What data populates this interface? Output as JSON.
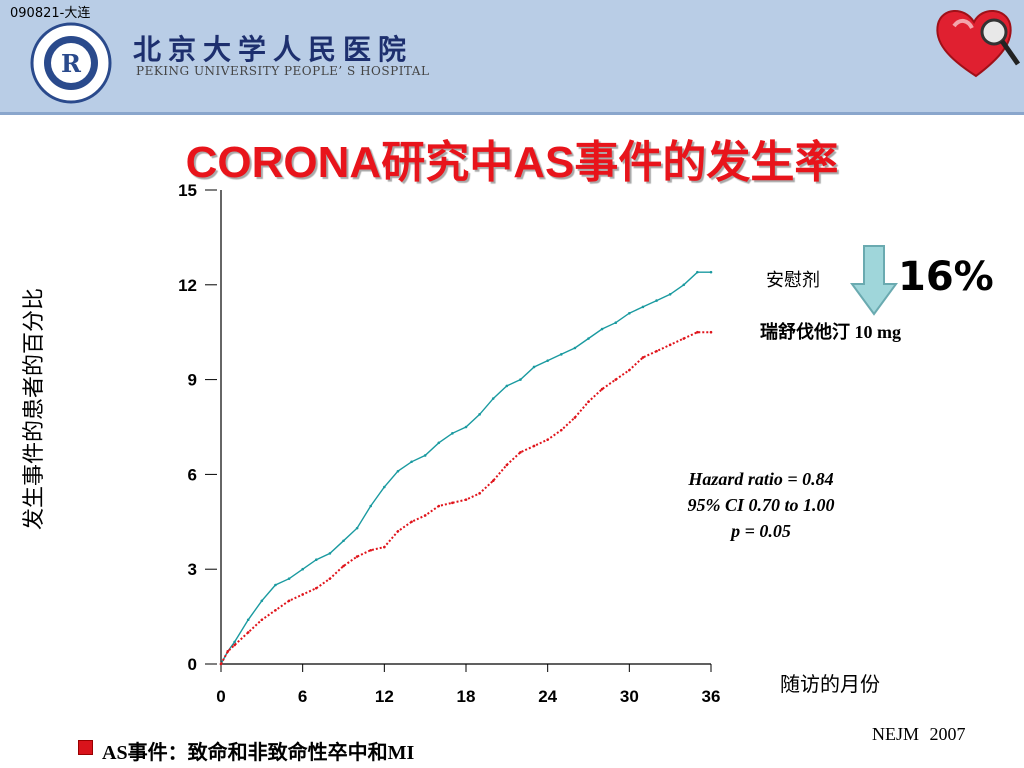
{
  "header": {
    "corner_tag": "090821-大连",
    "hospital_cn": "北京大学人民医院",
    "hospital_en": "PEKING UNIVERSITY PEOPLE’ S HOSPITAL"
  },
  "title": "CORONA研究中AS事件的发生率",
  "annotations": {
    "placebo": "安慰剂",
    "drug": "瑞舒伐他汀 10 mg",
    "reduction": "16%",
    "stats": [
      "Hazard ratio = 0.84",
      "95% CI 0.70 to 1.00",
      "p = 0.05"
    ]
  },
  "source": "NEJM  2007",
  "footnote": "AS事件：致命和非致命性卒中和MI",
  "colors": {
    "title": "#e8141b",
    "placebo_line": "#1a9aa0",
    "drug_line": "#e0141b",
    "arrow": "#9fd6da",
    "header_bg": "#b9cde6"
  },
  "chart_data": {
    "type": "line",
    "title": "",
    "xlabel": "随访的月份",
    "ylabel": "发生事件的患者的百分比",
    "xlim": [
      0,
      36
    ],
    "ylim": [
      0,
      15
    ],
    "x_ticks": [
      0,
      6,
      12,
      18,
      24,
      30,
      36
    ],
    "y_ticks": [
      0,
      3,
      6,
      9,
      12,
      15
    ],
    "grid": false,
    "series": [
      {
        "name": "安慰剂",
        "color": "#1a9aa0",
        "x": [
          0,
          0.5,
          1,
          2,
          3,
          4,
          5,
          6,
          7,
          8,
          9,
          10,
          11,
          12,
          13,
          14,
          15,
          16,
          17,
          18,
          19,
          20,
          21,
          22,
          23,
          24,
          25,
          26,
          27,
          28,
          29,
          30,
          31,
          32,
          33,
          34,
          35,
          36
        ],
        "values": [
          0,
          0.4,
          0.7,
          1.4,
          2.0,
          2.5,
          2.7,
          3.0,
          3.3,
          3.5,
          3.9,
          4.3,
          5.0,
          5.6,
          6.1,
          6.4,
          6.6,
          7.0,
          7.3,
          7.5,
          7.9,
          8.4,
          8.8,
          9.0,
          9.4,
          9.6,
          9.8,
          10.0,
          10.3,
          10.6,
          10.8,
          11.1,
          11.3,
          11.5,
          11.7,
          12.0,
          12.4,
          12.4
        ]
      },
      {
        "name": "瑞舒伐他汀 10 mg",
        "color": "#e0141b",
        "x": [
          0,
          0.5,
          1,
          2,
          3,
          4,
          5,
          6,
          7,
          8,
          9,
          10,
          11,
          12,
          13,
          14,
          15,
          16,
          17,
          18,
          19,
          20,
          21,
          22,
          23,
          24,
          25,
          26,
          27,
          28,
          29,
          30,
          31,
          32,
          33,
          34,
          35,
          36
        ],
        "values": [
          0,
          0.4,
          0.6,
          1.0,
          1.4,
          1.7,
          2.0,
          2.2,
          2.4,
          2.7,
          3.1,
          3.4,
          3.6,
          3.7,
          4.2,
          4.5,
          4.7,
          5.0,
          5.1,
          5.2,
          5.4,
          5.8,
          6.3,
          6.7,
          6.9,
          7.1,
          7.4,
          7.8,
          8.3,
          8.7,
          9.0,
          9.3,
          9.7,
          9.9,
          10.1,
          10.3,
          10.5,
          10.5
        ]
      }
    ]
  }
}
